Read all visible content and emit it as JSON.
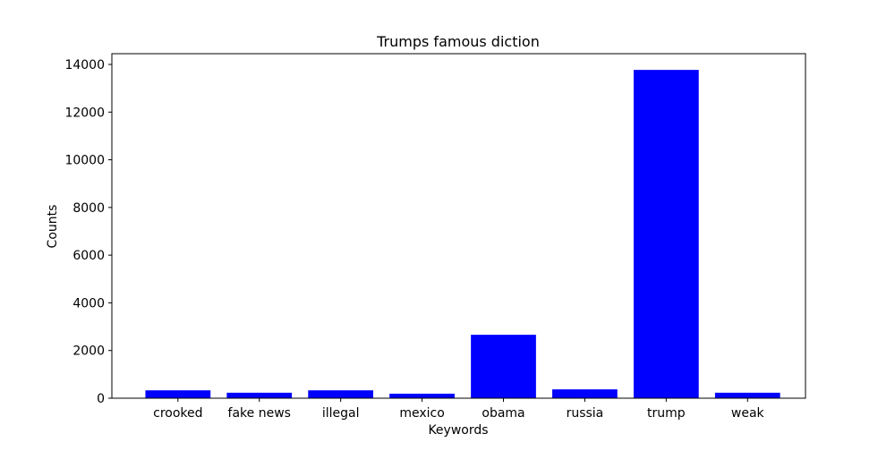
{
  "chart_data": {
    "type": "bar",
    "title": "Trumps famous diction",
    "xlabel": "Keywords",
    "ylabel": "Counts",
    "categories": [
      "crooked",
      "fake news",
      "illegal",
      "mexico",
      "obama",
      "russia",
      "trump",
      "weak"
    ],
    "values": [
      330,
      230,
      330,
      190,
      2660,
      370,
      13770,
      230
    ],
    "ylim": [
      0,
      14450
    ],
    "yticks": [
      0,
      2000,
      4000,
      6000,
      8000,
      10000,
      12000,
      14000
    ],
    "bar_color": "#0000ff",
    "grid": false,
    "legend": false
  }
}
